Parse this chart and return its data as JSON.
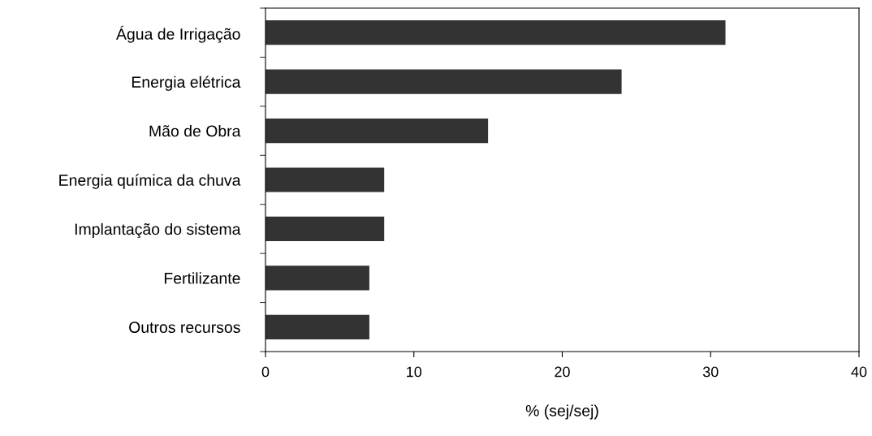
{
  "chart_data": {
    "type": "bar",
    "orientation": "horizontal",
    "xlabel": "% (sej/sej)",
    "categories": [
      "Água de Irrigação",
      "Energia elétrica",
      "Mão de Obra",
      "Energia química da chuva",
      "Implantação do sistema",
      "Fertilizante",
      "Outros recursos"
    ],
    "values": [
      31,
      24,
      15,
      8,
      8,
      7,
      7
    ],
    "color": "#333333",
    "xlim": [
      0,
      40
    ],
    "xticks": [
      0,
      10,
      20,
      30,
      40
    ],
    "grid": false
  }
}
